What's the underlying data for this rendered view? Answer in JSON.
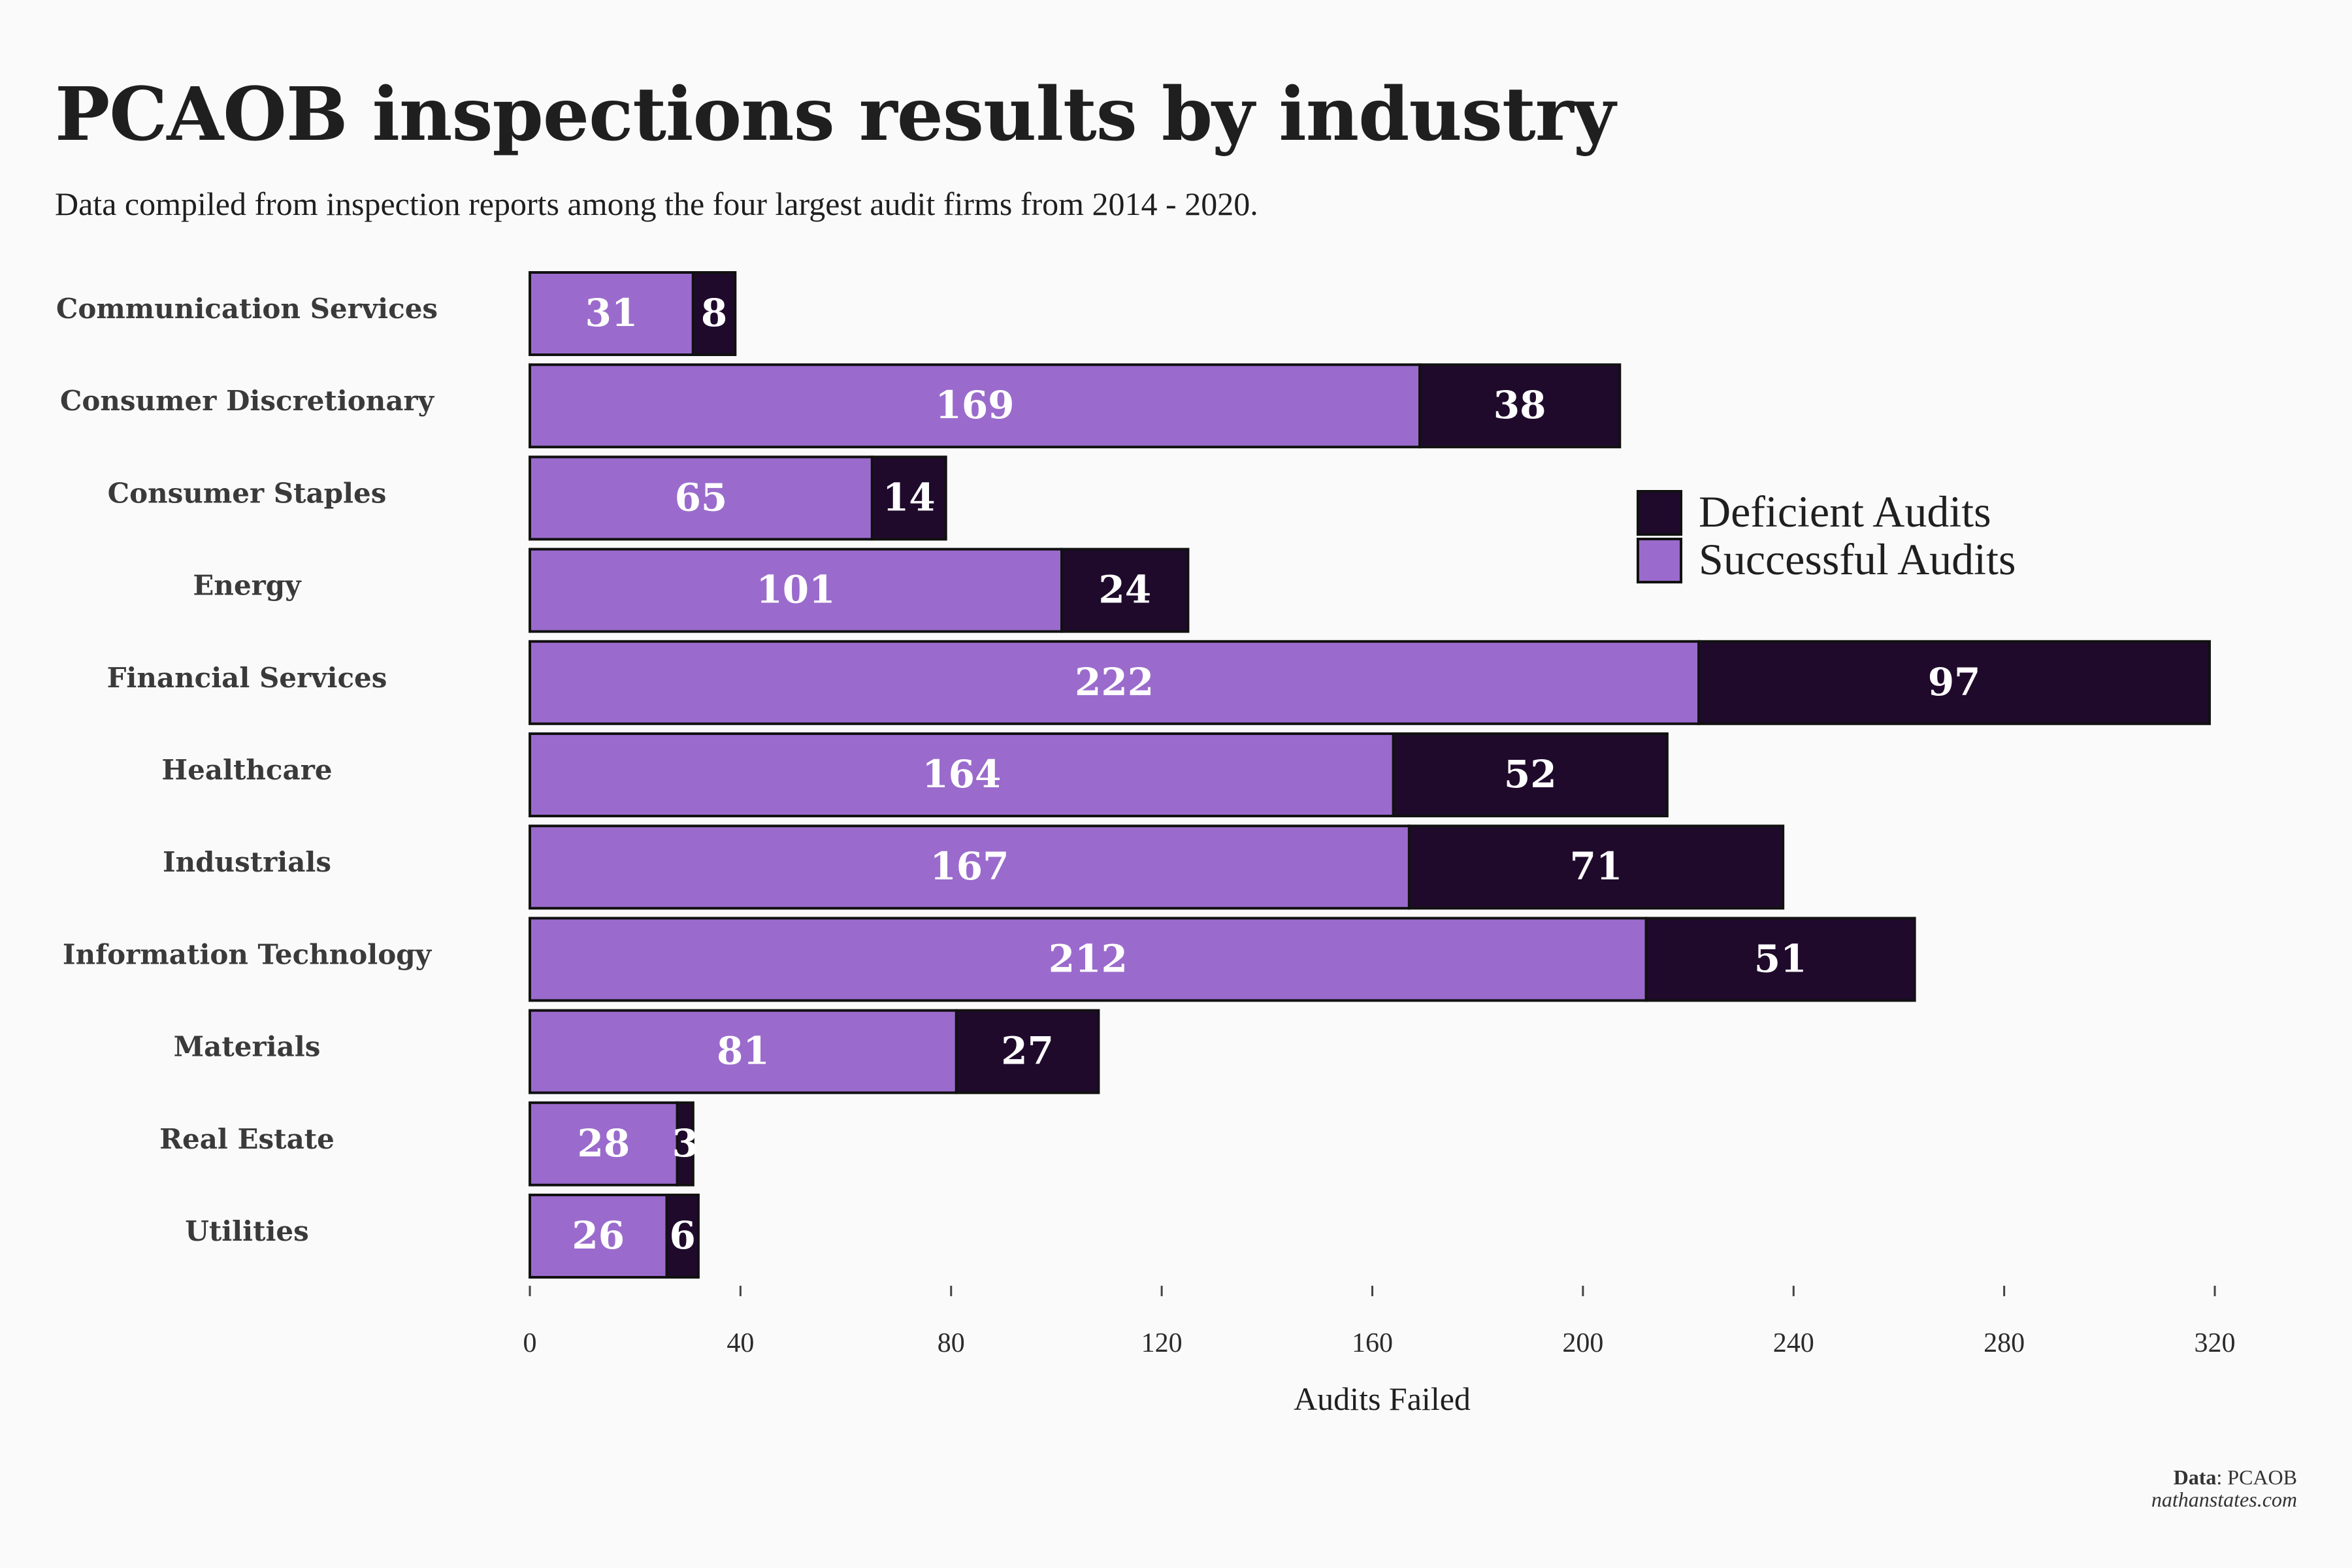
{
  "title": "PCAOB inspections results by industry",
  "subtitle": "Data compiled from inspection reports among the four largest audit firms from 2014 - 2020.",
  "source": {
    "key": "Data",
    "value": "PCAOB",
    "site": "nathanstates.com"
  },
  "colors": {
    "successful": "#9a6bcc",
    "deficient": "#1f0a2c",
    "outline": "#111111"
  },
  "chart_data": {
    "type": "bar",
    "orientation": "horizontal",
    "stacked": true,
    "categories": [
      "Communication Services",
      "Consumer Discretionary",
      "Consumer Staples",
      "Energy",
      "Financial Services",
      "Healthcare",
      "Industrials",
      "Information Technology",
      "Materials",
      "Real Estate",
      "Utilities"
    ],
    "series": [
      {
        "name": "Successful Audits",
        "values": [
          31,
          169,
          65,
          101,
          222,
          164,
          167,
          212,
          81,
          28,
          26
        ]
      },
      {
        "name": "Deficient Audits",
        "values": [
          8,
          38,
          14,
          24,
          97,
          52,
          71,
          51,
          27,
          3,
          6
        ]
      }
    ],
    "xlabel": "Audits Failed",
    "xlim": [
      0,
      320
    ],
    "xticks": [
      0,
      40,
      80,
      120,
      160,
      200,
      240,
      280,
      320
    ],
    "legend": {
      "placement": "right",
      "order": [
        "Deficient Audits",
        "Successful Audits"
      ]
    },
    "grid": false
  }
}
